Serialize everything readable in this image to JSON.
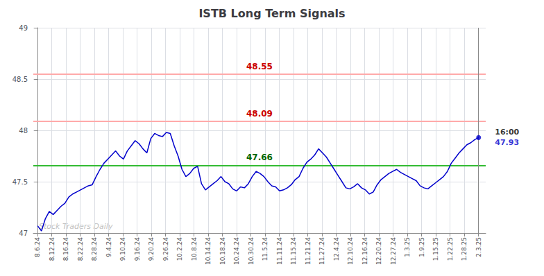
{
  "chart_data": {
    "type": "line",
    "title": "ISTB Long Term Signals",
    "color": "#0000cc",
    "x": [
      0,
      0.2743,
      0.5487,
      0.823,
      1.0973,
      1.3717,
      1.646,
      1.9204,
      2.1947,
      2.469,
      2.7434,
      3.0177,
      3.292,
      3.5664,
      3.8407,
      4.115,
      4.3894,
      4.6637,
      4.9381,
      5.2124,
      5.4867,
      5.7611,
      6.0354,
      6.3097,
      6.5841,
      6.8584,
      7.1327,
      7.4071,
      7.6814,
      7.9558,
      8.2301,
      8.5044,
      8.7788,
      9.0531,
      9.3274,
      9.6018,
      9.8761,
      10.1504,
      10.4248,
      10.6991,
      10.9735,
      11.2478,
      11.5221,
      11.7965,
      12.0708,
      12.3451,
      12.6195,
      12.8938,
      13.1681,
      13.4425,
      13.7168,
      13.9912,
      14.2655,
      14.5398,
      14.8142,
      15.0885,
      15.3628,
      15.6372,
      15.9115,
      16.1858,
      16.4602,
      16.7345,
      17.0088,
      17.2832,
      17.5575,
      17.8319,
      18.1062,
      18.3805,
      18.6549,
      18.9292,
      19.2035,
      19.4779,
      19.7522,
      20.0265,
      20.3009,
      20.5752,
      20.8496,
      21.1239,
      21.3982,
      21.6726,
      21.9469,
      22.2212,
      22.4956,
      22.7699,
      23.0442,
      23.3186,
      23.5929,
      23.8673,
      24.1416,
      24.4159,
      24.6903,
      24.9646,
      25.2389,
      25.5133,
      25.7876,
      26.0619,
      26.3363,
      26.6106,
      26.885,
      27.1593,
      27.4336,
      27.708,
      27.9823,
      28.2566,
      28.531,
      28.8053,
      29.0796,
      29.354,
      29.6283,
      29.9027,
      30.177,
      30.4513,
      30.7257,
      31
    ],
    "values": [
      47.07,
      47.02,
      47.14,
      47.21,
      47.18,
      47.22,
      47.26,
      47.29,
      47.35,
      47.38,
      47.4,
      47.42,
      47.44,
      47.46,
      47.47,
      47.55,
      47.62,
      47.68,
      47.72,
      47.76,
      47.8,
      47.75,
      47.72,
      47.8,
      47.85,
      47.9,
      47.87,
      47.82,
      47.78,
      47.92,
      47.97,
      47.95,
      47.94,
      47.98,
      47.97,
      47.85,
      47.75,
      47.62,
      47.55,
      47.58,
      47.63,
      47.65,
      47.48,
      47.42,
      47.45,
      47.48,
      47.51,
      47.55,
      47.5,
      47.48,
      47.43,
      47.41,
      47.45,
      47.44,
      47.48,
      47.55,
      47.6,
      47.58,
      47.55,
      47.5,
      47.46,
      47.45,
      47.41,
      47.42,
      47.44,
      47.47,
      47.52,
      47.55,
      47.63,
      47.69,
      47.72,
      47.76,
      47.82,
      47.78,
      47.74,
      47.68,
      47.62,
      47.56,
      47.5,
      47.44,
      47.43,
      47.45,
      47.48,
      47.44,
      47.42,
      47.38,
      47.4,
      47.47,
      47.52,
      47.55,
      47.58,
      47.6,
      47.62,
      47.59,
      47.57,
      47.55,
      47.53,
      47.51,
      47.46,
      47.44,
      47.43,
      47.46,
      47.49,
      47.52,
      47.55,
      47.6,
      47.68,
      47.73,
      47.78,
      47.82,
      47.86,
      47.88,
      47.91,
      47.93
    ],
    "xlim": [
      -0.3,
      31.5
    ],
    "xticks": [
      {
        "value": 0,
        "label": "8.6.24"
      },
      {
        "value": 1,
        "label": "8.12.24"
      },
      {
        "value": 2,
        "label": "8.16.24"
      },
      {
        "value": 3,
        "label": "8.22.24"
      },
      {
        "value": 4,
        "label": "8.28.24"
      },
      {
        "value": 5,
        "label": "9.4.24"
      },
      {
        "value": 6,
        "label": "9.10.24"
      },
      {
        "value": 7,
        "label": "9.16.24"
      },
      {
        "value": 8,
        "label": "9.20.24"
      },
      {
        "value": 9,
        "label": "9.26.24"
      },
      {
        "value": 10,
        "label": "10.2.24"
      },
      {
        "value": 11,
        "label": "10.8.24"
      },
      {
        "value": 12,
        "label": "10.14.24"
      },
      {
        "value": 13,
        "label": "10.18.24"
      },
      {
        "value": 14,
        "label": "10.24.24"
      },
      {
        "value": 15,
        "label": "10.30.24"
      },
      {
        "value": 16,
        "label": "11.5.24"
      },
      {
        "value": 17,
        "label": "11.11.24"
      },
      {
        "value": 18,
        "label": "11.15.24"
      },
      {
        "value": 19,
        "label": "11.21.24"
      },
      {
        "value": 20,
        "label": "11.27.24"
      },
      {
        "value": 21,
        "label": "12.4.24"
      },
      {
        "value": 22,
        "label": "12.10.24"
      },
      {
        "value": 23,
        "label": "12.16.24"
      },
      {
        "value": 24,
        "label": "12.20.24"
      },
      {
        "value": 25,
        "label": "12.27.24"
      },
      {
        "value": 26,
        "label": "1.3.25"
      },
      {
        "value": 27,
        "label": "1.9.25"
      },
      {
        "value": 28,
        "label": "1.15.25"
      },
      {
        "value": 29,
        "label": "1.22.25"
      },
      {
        "value": 30,
        "label": "1.28.25"
      },
      {
        "value": 31,
        "label": "2.3.25"
      }
    ],
    "ylim": [
      47,
      49
    ],
    "yticks": [
      47,
      47.5,
      48,
      48.5,
      49
    ],
    "grid": true,
    "reference_lines": [
      {
        "value": 47.66,
        "label": "47.66",
        "color": "#33bb33",
        "label_color": "#006600"
      },
      {
        "value": 48.09,
        "label": "48.09",
        "color": "#ffaaaa",
        "label_color": "#cc0000"
      },
      {
        "value": 48.55,
        "label": "48.55",
        "color": "#ffaaaa",
        "label_color": "#cc0000"
      }
    ],
    "vlines": [
      {
        "value": 31,
        "color": "#888888"
      }
    ],
    "watermark": "Stock Traders Daily",
    "annotations": [
      {
        "text": "16:00",
        "color": "#000000"
      },
      {
        "text": "47.93",
        "color": "#0000cc"
      }
    ]
  }
}
